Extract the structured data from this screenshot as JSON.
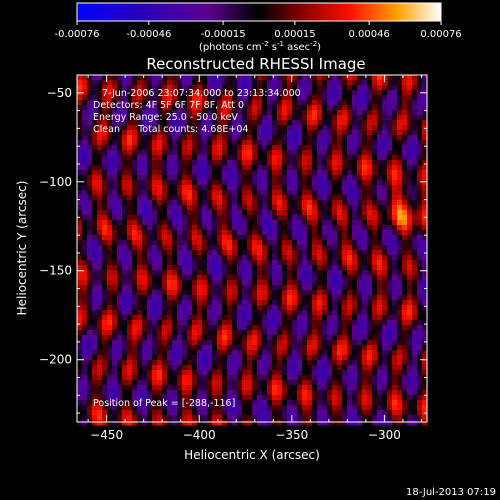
{
  "colorbar": {
    "tick_labels": [
      "-0.00076",
      "-0.00046",
      "-0.00015",
      "0.00015",
      "0.00046",
      "0.00076"
    ],
    "tick_values": [
      -0.00076,
      -0.00046,
      -0.00015,
      0.00015,
      0.00046,
      0.00076
    ],
    "range": [
      -0.00076,
      0.00076
    ],
    "units_main": "(photons cm",
    "units_exp1": "-2",
    "units_mid": " s",
    "units_exp2": "-1",
    "units_end": " asec",
    "units_exp3": "-2",
    "units_close": ")"
  },
  "chart_data": {
    "type": "heatmap",
    "title": "Reconstructed RHESSI Image",
    "xlabel": "Heliocentric X (arcsec)",
    "ylabel": "Heliocentric Y (arcsec)",
    "xlim": [
      -466,
      -277
    ],
    "ylim": [
      -235,
      -40
    ],
    "x_ticks": [
      -450,
      -400,
      -350,
      -300
    ],
    "x_tick_labels": [
      "−450",
      "−400",
      "−350",
      "−300"
    ],
    "y_ticks": [
      -50,
      -100,
      -150,
      -200
    ],
    "y_tick_labels": [
      "−50",
      "−100",
      "−150",
      "−200"
    ],
    "annotations": [
      "7-Jun-2006 23:07:34.000 to 23:13:34.000",
      "Detectors: 4F 5F 6F 7F 8F, Att 0",
      "Energy Range: 25.0 - 50.0 keV",
      "Clean      Total counts: 4.68E+04"
    ],
    "peak_label": "Position of Peak = [-288,-116]",
    "peak_position": [
      -288,
      -116
    ]
  },
  "footer": {
    "timestamp": "18-Jul-2013 07:19"
  }
}
